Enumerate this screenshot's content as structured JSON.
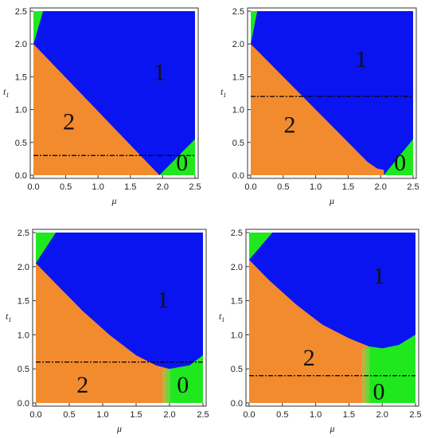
{
  "colors": {
    "phase_2": "#f28a2e",
    "phase_1": "#0a14f0",
    "phase_0": "#1fe81f",
    "frame": "#333333",
    "dashed_line": "#000000"
  },
  "chart_data": [
    {
      "type": "heatmap",
      "xlabel": "μ",
      "ylabel": "t",
      "ylabel_sub": "1",
      "xlim": [
        0,
        2.5
      ],
      "ylim": [
        0,
        2.5
      ],
      "xticks": [
        "0.0",
        "0.5",
        "1.0",
        "1.5",
        "2.0",
        "2.5"
      ],
      "yticks": [
        "0.0",
        "0.5",
        "1.0",
        "1.5",
        "2.0",
        "2.5"
      ],
      "dashed_line_t1": 0.3,
      "green_corner_top_left": [
        [
          0,
          2.0
        ],
        [
          0.15,
          2.5
        ],
        [
          0,
          2.5
        ]
      ],
      "green_corner_bottom_right": [
        [
          1.95,
          0
        ],
        [
          2.5,
          0
        ],
        [
          2.5,
          0.55
        ]
      ],
      "boundary_2_1": [
        [
          0,
          2.0
        ],
        [
          1.95,
          0
        ]
      ],
      "region_labels": [
        {
          "text": "2",
          "mu": 0.55,
          "t1": 0.7
        },
        {
          "text": "1",
          "mu": 1.95,
          "t1": 1.45
        },
        {
          "text": "0",
          "mu": 2.3,
          "t1": 0.07
        }
      ]
    },
    {
      "type": "heatmap",
      "xlabel": "μ",
      "ylabel": "t",
      "ylabel_sub": "1",
      "xlim": [
        0,
        2.5
      ],
      "ylim": [
        0,
        2.5
      ],
      "xticks": [
        "0.0",
        "0.5",
        "1.0",
        "1.5",
        "2.0",
        "2.5"
      ],
      "yticks": [
        "0.0",
        "0.5",
        "1.0",
        "1.5",
        "2.0",
        "2.5"
      ],
      "dashed_line_t1": 1.2,
      "green_corner_top_left": [
        [
          0,
          2.0
        ],
        [
          0.1,
          2.5
        ],
        [
          0,
          2.5
        ]
      ],
      "green_corner_bottom_right": [
        [
          2.05,
          0
        ],
        [
          2.5,
          0
        ],
        [
          2.5,
          0.55
        ]
      ],
      "boundary_2_1": [
        [
          0,
          2.0
        ],
        [
          0.5,
          1.5
        ],
        [
          1.0,
          1.0
        ],
        [
          1.5,
          0.5
        ],
        [
          1.8,
          0.2
        ],
        [
          1.95,
          0.1
        ],
        [
          2.05,
          0.08
        ]
      ],
      "region_labels": [
        {
          "text": "2",
          "mu": 0.6,
          "t1": 0.65
        },
        {
          "text": "1",
          "mu": 1.7,
          "t1": 1.65
        },
        {
          "text": "0",
          "mu": 2.3,
          "t1": 0.07
        }
      ]
    },
    {
      "type": "heatmap",
      "xlabel": "μ",
      "ylabel": "t",
      "ylabel_sub": "1",
      "xlim": [
        0,
        2.5
      ],
      "ylim": [
        0,
        2.5
      ],
      "xticks": [
        "0.0",
        "0.5",
        "1.0",
        "1.5",
        "2.0",
        "2.5"
      ],
      "yticks": [
        "0.0",
        "0.5",
        "1.0",
        "1.5",
        "2.0",
        "2.5"
      ],
      "dashed_line_t1": 0.6,
      "green_corner_top_left": [
        [
          0,
          2.05
        ],
        [
          0.3,
          2.5
        ],
        [
          0,
          2.5
        ]
      ],
      "green_block_bottom_right": {
        "mu_from": 1.95,
        "t1_top": 0.5,
        "mu_right_top": 0.6
      },
      "boundary_2_1": [
        [
          0,
          2.05
        ],
        [
          0.3,
          1.75
        ],
        [
          0.7,
          1.35
        ],
        [
          1.1,
          1.0
        ],
        [
          1.5,
          0.7
        ],
        [
          1.8,
          0.55
        ],
        [
          2.0,
          0.5
        ],
        [
          2.3,
          0.55
        ],
        [
          2.5,
          0.7
        ]
      ],
      "region_labels": [
        {
          "text": "2",
          "mu": 0.7,
          "t1": 0.15
        },
        {
          "text": "1",
          "mu": 1.9,
          "t1": 1.4
        },
        {
          "text": "0",
          "mu": 2.2,
          "t1": 0.15
        }
      ]
    },
    {
      "type": "heatmap",
      "xlabel": "μ",
      "ylabel": "t",
      "ylabel_sub": "1",
      "xlim": [
        0,
        2.5
      ],
      "ylim": [
        0,
        2.5
      ],
      "xticks": [
        "0.0",
        "0.5",
        "1.0",
        "1.5",
        "2.0",
        "2.5"
      ],
      "yticks": [
        "0.0",
        "0.5",
        "1.0",
        "1.5",
        "2.0",
        "2.5"
      ],
      "dashed_line_t1": 0.4,
      "green_corner_top_left": [
        [
          0,
          2.1
        ],
        [
          0.35,
          2.5
        ],
        [
          0,
          2.5
        ]
      ],
      "green_block_bottom_right": {
        "mu_from": 1.75,
        "t1_top": 0.8,
        "mu_right_top": 1.0
      },
      "boundary_2_1": [
        [
          0,
          2.1
        ],
        [
          0.3,
          1.8
        ],
        [
          0.7,
          1.45
        ],
        [
          1.1,
          1.15
        ],
        [
          1.5,
          0.95
        ],
        [
          1.8,
          0.83
        ],
        [
          2.0,
          0.8
        ],
        [
          2.25,
          0.85
        ],
        [
          2.5,
          1.0
        ]
      ],
      "region_labels": [
        {
          "text": "2",
          "mu": 0.9,
          "t1": 0.55
        },
        {
          "text": "1",
          "mu": 1.95,
          "t1": 1.75
        },
        {
          "text": "0",
          "mu": 1.95,
          "t1": 0.05
        }
      ]
    }
  ]
}
